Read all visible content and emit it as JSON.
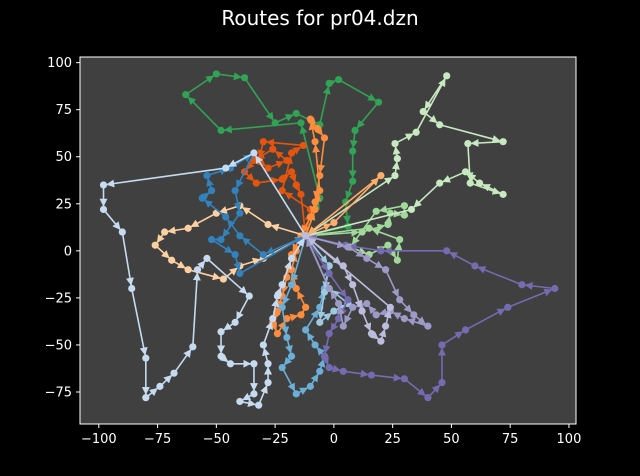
{
  "chart_data": {
    "type": "line",
    "title": "Routes for pr04.dzn",
    "xlabel": "",
    "ylabel": "",
    "xlim": [
      -108,
      103
    ],
    "ylim": [
      -92,
      103
    ],
    "x_ticks": [
      -100,
      -75,
      -50,
      -25,
      0,
      25,
      50,
      75,
      100
    ],
    "y_ticks": [
      -75,
      -50,
      -25,
      0,
      25,
      50,
      75,
      100
    ],
    "grid": false,
    "legend": "none",
    "depot": [
      -12,
      8
    ],
    "background": "#404040",
    "figure_background": "#000000",
    "series": [
      {
        "color": "#31a354",
        "points": [
          [
            -12,
            8
          ],
          [
            -6,
            28
          ],
          [
            -14,
            68
          ],
          [
            -48,
            64
          ],
          [
            -63,
            83
          ],
          [
            -50,
            94
          ],
          [
            -38,
            92
          ],
          [
            -25,
            68
          ],
          [
            -16,
            73
          ],
          [
            -6,
            67
          ],
          [
            -2,
            89
          ],
          [
            2,
            91
          ],
          [
            19,
            79
          ],
          [
            9,
            64
          ],
          [
            8,
            53
          ],
          [
            8,
            37
          ],
          [
            5,
            26
          ],
          [
            6,
            13
          ],
          [
            -12,
            8
          ]
        ]
      },
      {
        "color": "#a1d99b",
        "points": [
          [
            -12,
            8
          ],
          [
            12,
            10
          ],
          [
            23,
            14
          ],
          [
            24,
            20
          ],
          [
            30,
            19
          ],
          [
            30,
            24
          ],
          [
            18,
            21
          ],
          [
            7,
            2
          ],
          [
            15,
            -2
          ],
          [
            23,
            3
          ],
          [
            27,
            -5
          ],
          [
            28,
            6
          ],
          [
            15,
            12
          ],
          [
            -12,
            8
          ]
        ]
      },
      {
        "color": "#c7e9c0",
        "points": [
          [
            -12,
            8
          ],
          [
            26,
            40
          ],
          [
            27,
            49
          ],
          [
            26,
            57
          ],
          [
            35,
            63
          ],
          [
            48,
            93
          ],
          [
            38,
            74
          ],
          [
            45,
            67
          ],
          [
            72,
            58
          ],
          [
            57,
            57
          ],
          [
            58,
            36
          ],
          [
            72,
            30
          ],
          [
            62,
            36
          ],
          [
            56,
            42
          ],
          [
            45,
            36
          ],
          [
            33,
            22
          ],
          [
            -12,
            8
          ]
        ]
      },
      {
        "color": "#e6550d",
        "points": [
          [
            -12,
            8
          ],
          [
            -10,
            22
          ],
          [
            -22,
            32
          ],
          [
            -18,
            52
          ],
          [
            -13,
            56
          ],
          [
            -30,
            58
          ],
          [
            -32,
            48
          ],
          [
            -28,
            44
          ],
          [
            -20,
            48
          ],
          [
            -26,
            54
          ],
          [
            -34,
            48
          ],
          [
            -38,
            42
          ],
          [
            -33,
            36
          ],
          [
            -22,
            38
          ],
          [
            -18,
            42
          ],
          [
            -16,
            35
          ],
          [
            -14,
            30
          ],
          [
            -12,
            8
          ]
        ]
      },
      {
        "color": "#fd8d3c",
        "points": [
          [
            -12,
            8
          ],
          [
            -8,
            22
          ],
          [
            -6,
            32
          ],
          [
            -8,
            58
          ],
          [
            -10,
            70
          ],
          [
            -7,
            65
          ],
          [
            -4,
            60
          ],
          [
            -6,
            40
          ],
          [
            -8,
            26
          ],
          [
            -10,
            18
          ],
          [
            -14,
            8
          ],
          [
            -18,
            -2
          ],
          [
            -20,
            -14
          ],
          [
            -22,
            -24
          ],
          [
            -24,
            -32
          ],
          [
            -26,
            -38
          ],
          [
            -24,
            -44
          ],
          [
            -20,
            -36
          ],
          [
            -14,
            -34
          ],
          [
            -12,
            -30
          ],
          [
            -16,
            -20
          ],
          [
            -18,
            -10
          ],
          [
            -16,
            0
          ],
          [
            -12,
            8
          ]
        ]
      },
      {
        "color": "#fdae6b",
        "points": [
          [
            -12,
            8
          ],
          [
            0,
            15
          ],
          [
            20,
            40
          ],
          [
            -12,
            8
          ]
        ]
      },
      {
        "color": "#fdd0a2",
        "points": [
          [
            -12,
            8
          ],
          [
            -28,
            14
          ],
          [
            -40,
            24
          ],
          [
            -50,
            20
          ],
          [
            -62,
            12
          ],
          [
            -72,
            10
          ],
          [
            -76,
            3
          ],
          [
            -69,
            -5
          ],
          [
            -62,
            -10
          ],
          [
            -47,
            -15
          ],
          [
            -40,
            -8
          ],
          [
            -30,
            -4
          ],
          [
            -12,
            8
          ]
        ]
      },
      {
        "color": "#3182bd",
        "points": [
          [
            -12,
            8
          ],
          [
            -30,
            -2
          ],
          [
            -40,
            8
          ],
          [
            -46,
            18
          ],
          [
            -56,
            28
          ],
          [
            -52,
            32
          ],
          [
            -54,
            40
          ],
          [
            -44,
            44
          ],
          [
            -34,
            52
          ],
          [
            -42,
            32
          ],
          [
            -40,
            20
          ],
          [
            -48,
            6
          ],
          [
            -52,
            6
          ],
          [
            -42,
            -2
          ],
          [
            -40,
            -12
          ],
          [
            -12,
            8
          ]
        ]
      },
      {
        "color": "#6baed6",
        "points": [
          [
            -12,
            8
          ],
          [
            -18,
            -18
          ],
          [
            -22,
            -30
          ],
          [
            -20,
            -46
          ],
          [
            -18,
            -56
          ],
          [
            -22,
            -62
          ],
          [
            -16,
            -76
          ],
          [
            -10,
            -72
          ],
          [
            -6,
            -64
          ],
          [
            -4,
            -56
          ],
          [
            -8,
            -50
          ],
          [
            -12,
            -42
          ],
          [
            -6,
            -30
          ],
          [
            -4,
            -20
          ],
          [
            -2,
            -8
          ],
          [
            -12,
            8
          ]
        ]
      },
      {
        "color": "#9ecae1",
        "points": [
          [
            -12,
            8
          ],
          [
            -2,
            -8
          ],
          [
            -4,
            -22
          ],
          [
            -6,
            -38
          ],
          [
            0,
            -32
          ],
          [
            6,
            -28
          ],
          [
            -2,
            -20
          ],
          [
            -12,
            8
          ]
        ]
      },
      {
        "color": "#c6dbef",
        "points": [
          [
            -12,
            8
          ],
          [
            -34,
            52
          ],
          [
            -46,
            44
          ],
          [
            -98,
            35
          ],
          [
            -98,
            22
          ],
          [
            -90,
            10
          ],
          [
            -86,
            -20
          ],
          [
            -80,
            -57
          ],
          [
            -80,
            -78
          ],
          [
            -74,
            -72
          ],
          [
            -68,
            -65
          ],
          [
            -60,
            -51
          ],
          [
            -58,
            -10
          ],
          [
            -54,
            -4
          ],
          [
            -36,
            -24
          ],
          [
            -42,
            -38
          ],
          [
            -48,
            -43
          ],
          [
            -48,
            -56
          ],
          [
            -44,
            -60
          ],
          [
            -34,
            -60
          ],
          [
            -34,
            -76
          ],
          [
            -40,
            -80
          ],
          [
            -32,
            -82
          ],
          [
            -28,
            -70
          ],
          [
            -28,
            -60
          ],
          [
            -30,
            -50
          ],
          [
            -26,
            -36
          ],
          [
            -24,
            -24
          ],
          [
            -22,
            -18
          ],
          [
            -18,
            -4
          ],
          [
            -12,
            8
          ]
        ]
      },
      {
        "color": "#756bb1",
        "points": [
          [
            -12,
            8
          ],
          [
            -2,
            -12
          ],
          [
            6,
            -26
          ],
          [
            2,
            -36
          ],
          [
            -2,
            -44
          ],
          [
            -4,
            -56
          ],
          [
            -2,
            -62
          ],
          [
            4,
            -64
          ],
          [
            16,
            -66
          ],
          [
            30,
            -68
          ],
          [
            40,
            -78
          ],
          [
            46,
            -70
          ],
          [
            46,
            -50
          ],
          [
            56,
            -42
          ],
          [
            74,
            -30
          ],
          [
            94,
            -20
          ],
          [
            80,
            -18
          ],
          [
            60,
            -8
          ],
          [
            48,
            0
          ],
          [
            20,
            0
          ],
          [
            5,
            3
          ],
          [
            -12,
            8
          ]
        ]
      },
      {
        "color": "#9e9ac8",
        "points": [
          [
            -12,
            8
          ],
          [
            6,
            2
          ],
          [
            14,
            -4
          ],
          [
            22,
            -10
          ],
          [
            28,
            -26
          ],
          [
            34,
            -34
          ],
          [
            40,
            -40
          ],
          [
            30,
            -36
          ],
          [
            24,
            -32
          ],
          [
            18,
            -34
          ],
          [
            14,
            -28
          ],
          [
            8,
            -30
          ],
          [
            4,
            -40
          ],
          [
            2,
            -28
          ],
          [
            -2,
            -20
          ],
          [
            -12,
            8
          ]
        ]
      },
      {
        "color": "#bcbddc",
        "points": [
          [
            -12,
            8
          ],
          [
            4,
            -8
          ],
          [
            8,
            -18
          ],
          [
            12,
            -32
          ],
          [
            16,
            -44
          ],
          [
            20,
            -48
          ],
          [
            22,
            -40
          ],
          [
            24,
            -30
          ],
          [
            -12,
            8
          ]
        ]
      }
    ]
  }
}
